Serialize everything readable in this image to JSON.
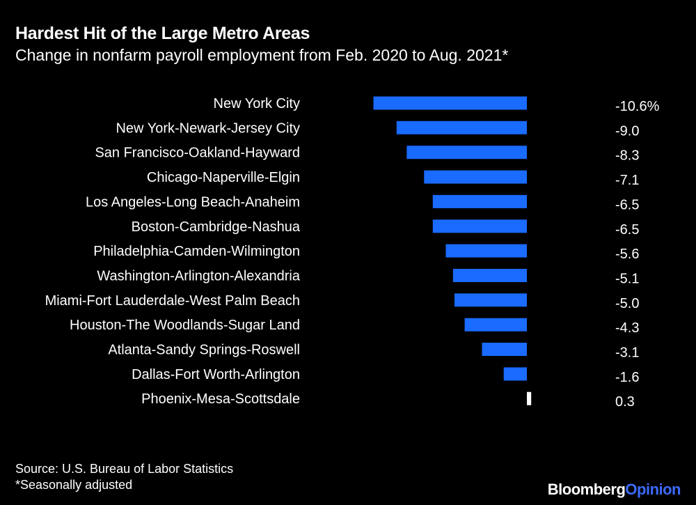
{
  "header": {
    "title": "Hardest Hit of the Large Metro Areas",
    "subtitle": "Change in nonfarm payroll employment from Feb. 2020 to Aug. 2021*"
  },
  "chart_data": {
    "type": "bar",
    "orientation": "horizontal",
    "categories": [
      "New York City",
      "New York-Newark-Jersey City",
      "San Francisco-Oakland-Hayward",
      "Chicago-Naperville-Elgin",
      "Los Angeles-Long Beach-Anaheim",
      "Boston-Cambridge-Nashua",
      "Philadelphia-Camden-Wilmington",
      "Washington-Arlington-Alexandria",
      "Miami-Fort Lauderdale-West Palm Beach",
      "Houston-The Woodlands-Sugar Land",
      "Atlanta-Sandy Springs-Roswell",
      "Dallas-Fort Worth-Arlington",
      "Phoenix-Mesa-Scottsdale"
    ],
    "values": [
      -10.6,
      -9.0,
      -8.3,
      -7.1,
      -6.5,
      -6.5,
      -5.6,
      -5.1,
      -5.0,
      -4.3,
      -3.1,
      -1.6,
      0.3
    ],
    "value_labels": [
      "-10.6%",
      "-9.0",
      "-8.3",
      "-7.1",
      "-6.5",
      "-6.5",
      "-5.6",
      "-5.1",
      "-5.0",
      "-4.3",
      "-3.1",
      "-1.6",
      "0.3"
    ],
    "colors": {
      "negative": "#1a6bff",
      "positive": "#ffffff"
    },
    "xlim": [
      -10.6,
      0.3
    ]
  },
  "footer": {
    "source": "Source: U.S. Bureau of Labor Statistics",
    "note": "*Seasonally adjusted"
  },
  "brand": {
    "name": "Bloomberg",
    "suffix": "Opinion"
  }
}
